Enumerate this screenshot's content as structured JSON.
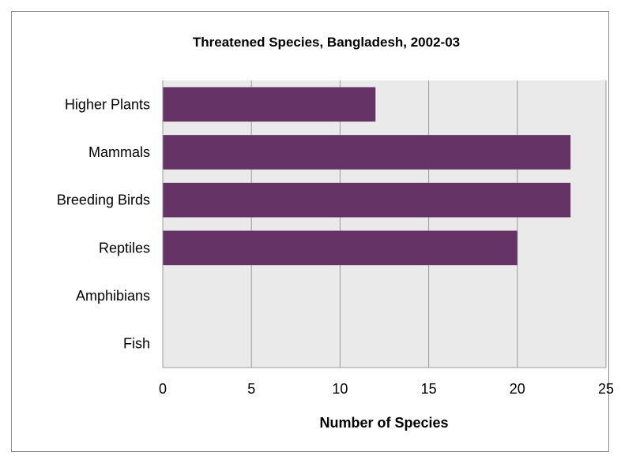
{
  "chart_data": {
    "type": "bar",
    "orientation": "horizontal",
    "title": "Threatened Species, Bangladesh, 2002-03",
    "xlabel": "Number of Species",
    "ylabel": "",
    "categories": [
      "Higher Plants",
      "Mammals",
      "Breeding Birds",
      "Reptiles",
      "Amphibians",
      "Fish"
    ],
    "values": [
      12,
      23,
      23,
      20,
      0,
      0
    ],
    "xlim": [
      0,
      25
    ],
    "xticks": [
      "0",
      "5",
      "10",
      "15",
      "20",
      "25"
    ],
    "grid": true,
    "legend": "none",
    "bar_color": "#663366",
    "plot_background": "#eaeaea",
    "gridline_color": "#9b9b9b"
  }
}
